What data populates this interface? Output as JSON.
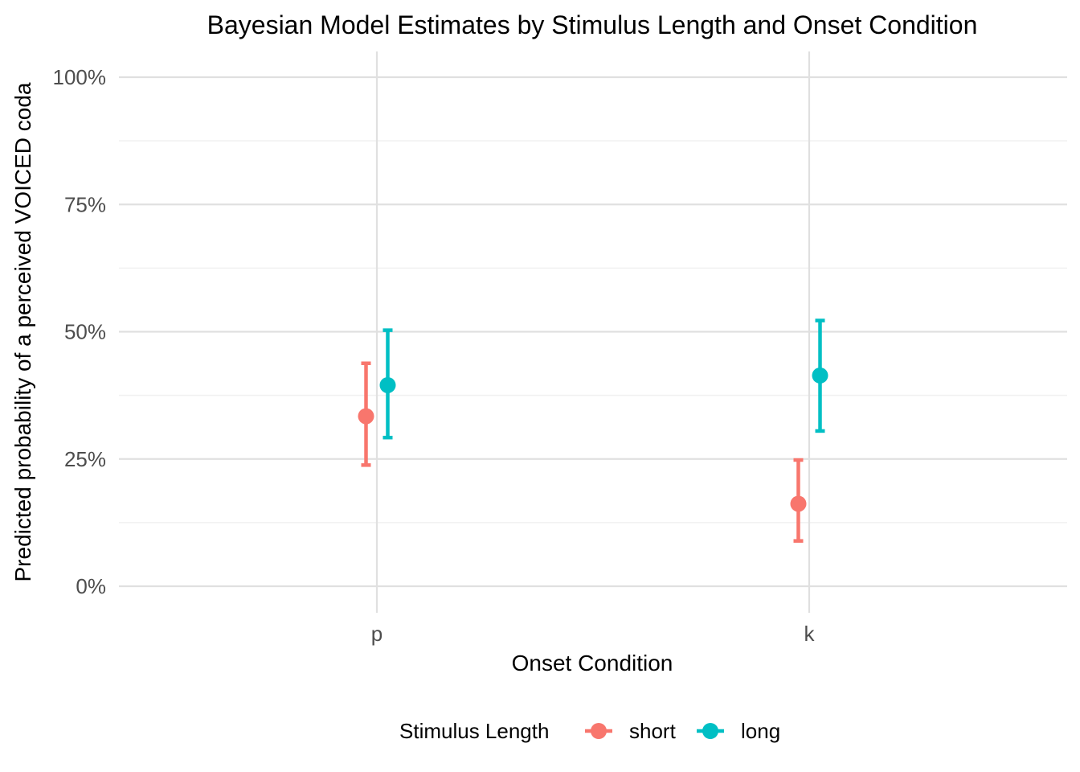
{
  "chart_data": {
    "type": "pointrange",
    "title": "Bayesian Model Estimates by Stimulus Length and Onset Condition",
    "xlabel": "Onset Condition",
    "ylabel": "Predicted probability of a perceived VOICED coda",
    "categories": [
      "p",
      "k"
    ],
    "ylim": [
      0,
      1
    ],
    "yticks": [
      0,
      0.25,
      0.5,
      0.75,
      1.0
    ],
    "ytick_labels": [
      "0%",
      "25%",
      "50%",
      "75%",
      "100%"
    ],
    "grid": true,
    "legend": {
      "title": "Stimulus Length",
      "position": "bottom"
    },
    "series": [
      {
        "name": "short",
        "color": "#F8766D",
        "values": [
          0.334,
          0.162
        ],
        "lower": [
          0.238,
          0.089
        ],
        "upper": [
          0.438,
          0.248
        ]
      },
      {
        "name": "long",
        "color": "#00BFC4",
        "values": [
          0.395,
          0.414
        ],
        "lower": [
          0.292,
          0.305
        ],
        "upper": [
          0.503,
          0.522
        ]
      }
    ]
  }
}
